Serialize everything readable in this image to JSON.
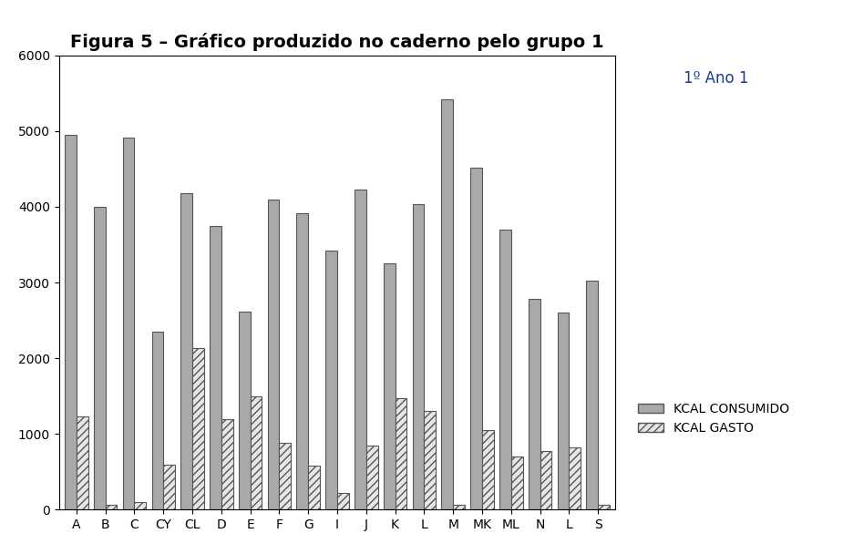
{
  "chart_data": {
    "type": "bar",
    "title": "Figura 5 – Gráfico produzido no caderno pelo grupo 1",
    "annotations": [
      "1º Ano 1"
    ],
    "categories": [
      "A",
      "B",
      "C",
      "CY",
      "CL",
      "D",
      "E",
      "F",
      "G",
      "I",
      "J",
      "K",
      "L",
      "M",
      "MK",
      "ML",
      "N",
      "L",
      "S"
    ],
    "series": [
      {
        "name": "KCAL CONSUMIDO",
        "color": "#a9a9a9",
        "values": [
          4950,
          4000,
          4920,
          2350,
          4180,
          3750,
          2620,
          4100,
          3920,
          3420,
          4230,
          3250,
          4030,
          5420,
          4520,
          3700,
          2780,
          2600,
          3020
        ]
      },
      {
        "name": "KCAL GASTO",
        "color": "#e6e6e6",
        "values": [
          1230,
          70,
          100,
          600,
          2130,
          1200,
          1500,
          880,
          580,
          220,
          850,
          1470,
          1300,
          60,
          1050,
          700,
          780,
          820,
          70
        ]
      }
    ],
    "ylim": [
      0,
      6000
    ],
    "yticks": [
      0,
      1000,
      2000,
      3000,
      4000,
      5000,
      6000
    ],
    "grid": false,
    "legend": "center left"
  }
}
